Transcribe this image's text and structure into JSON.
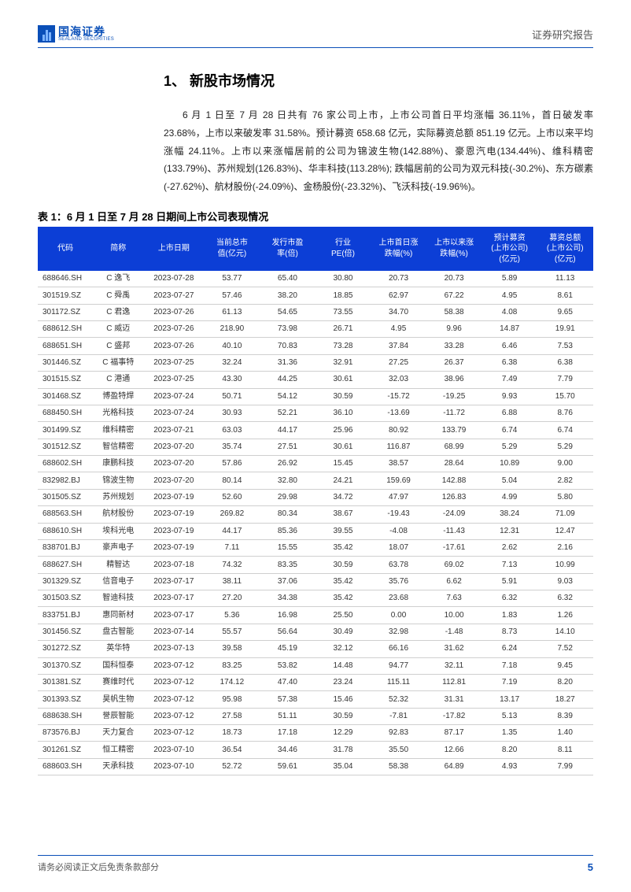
{
  "header": {
    "logo_cn": "国海证券",
    "logo_en": "SEALAND SECURITIES",
    "right_text": "证券研究报告"
  },
  "section": {
    "title": "1、 新股市场情况",
    "paragraph": "6 月 1 日至 7 月 28 日共有 76 家公司上市，上市公司首日平均涨幅 36.11%，首日破发率 23.68%，上市以来破发率 31.58%。预计募资 658.68 亿元，实际募资总额 851.19 亿元。上市以来平均涨幅 24.11%。上市以来涨幅居前的公司为锦波生物(142.88%)、豪恩汽电(134.44%)、维科精密(133.79%)、苏州规划(126.83%)、华丰科技(113.28%); 跌幅居前的公司为双元科技(-30.2%)、东方碳素(-27.62%)、航材股份(-24.09%)、金杨股份(-23.32%)、飞沃科技(-19.96%)。"
  },
  "table": {
    "title": "表 1：6 月 1 日至 7 月 28 日期间上市公司表现情况",
    "header_bg": "#0c3ed6",
    "columns": [
      "代码",
      "简称",
      "上市日期",
      "当前总市\n值(亿元)",
      "发行市盈\n率(倍)",
      "行业\nPE(倍)",
      "上市首日涨\n跌幅(%)",
      "上市以来涨\n跌幅(%)",
      "预计募资\n(上市公司)\n(亿元)",
      "募资总额\n(上市公司)\n(亿元)"
    ],
    "rows": [
      [
        "688646.SH",
        "C 逸飞",
        "2023-07-28",
        "53.77",
        "65.40",
        "30.80",
        "20.73",
        "20.73",
        "5.89",
        "11.13"
      ],
      [
        "301519.SZ",
        "C 舜禹",
        "2023-07-27",
        "57.46",
        "38.20",
        "18.85",
        "62.97",
        "67.22",
        "4.95",
        "8.61"
      ],
      [
        "301172.SZ",
        "C 君逸",
        "2023-07-26",
        "61.13",
        "54.65",
        "73.55",
        "34.70",
        "58.38",
        "4.08",
        "9.65"
      ],
      [
        "688612.SH",
        "C 威迈",
        "2023-07-26",
        "218.90",
        "73.98",
        "26.71",
        "4.95",
        "9.96",
        "14.87",
        "19.91"
      ],
      [
        "688651.SH",
        "C 盛邦",
        "2023-07-26",
        "40.10",
        "70.83",
        "73.28",
        "37.84",
        "33.28",
        "6.46",
        "7.53"
      ],
      [
        "301446.SZ",
        "C 福事特",
        "2023-07-25",
        "32.24",
        "31.36",
        "32.91",
        "27.25",
        "26.37",
        "6.38",
        "6.38"
      ],
      [
        "301515.SZ",
        "C 港通",
        "2023-07-25",
        "43.30",
        "44.25",
        "30.61",
        "32.03",
        "38.96",
        "7.49",
        "7.79"
      ],
      [
        "301468.SZ",
        "博盈特焊",
        "2023-07-24",
        "50.71",
        "54.12",
        "30.59",
        "-15.72",
        "-19.25",
        "9.93",
        "15.70"
      ],
      [
        "688450.SH",
        "光格科技",
        "2023-07-24",
        "30.93",
        "52.21",
        "36.10",
        "-13.69",
        "-11.72",
        "6.88",
        "8.76"
      ],
      [
        "301499.SZ",
        "维科精密",
        "2023-07-21",
        "63.03",
        "44.17",
        "25.96",
        "80.92",
        "133.79",
        "6.74",
        "6.74"
      ],
      [
        "301512.SZ",
        "智信精密",
        "2023-07-20",
        "35.74",
        "27.51",
        "30.61",
        "116.87",
        "68.99",
        "5.29",
        "5.29"
      ],
      [
        "688602.SH",
        "康鹏科技",
        "2023-07-20",
        "57.86",
        "26.92",
        "15.45",
        "38.57",
        "28.64",
        "10.89",
        "9.00"
      ],
      [
        "832982.BJ",
        "锦波生物",
        "2023-07-20",
        "80.14",
        "32.80",
        "24.21",
        "159.69",
        "142.88",
        "5.04",
        "2.82"
      ],
      [
        "301505.SZ",
        "苏州规划",
        "2023-07-19",
        "52.60",
        "29.98",
        "34.72",
        "47.97",
        "126.83",
        "4.99",
        "5.80"
      ],
      [
        "688563.SH",
        "航材股份",
        "2023-07-19",
        "269.82",
        "80.34",
        "38.67",
        "-19.43",
        "-24.09",
        "38.24",
        "71.09"
      ],
      [
        "688610.SH",
        "埃科光电",
        "2023-07-19",
        "44.17",
        "85.36",
        "39.55",
        "-4.08",
        "-11.43",
        "12.31",
        "12.47"
      ],
      [
        "838701.BJ",
        "豪声电子",
        "2023-07-19",
        "7.11",
        "15.55",
        "35.42",
        "18.07",
        "-17.61",
        "2.62",
        "2.16"
      ],
      [
        "688627.SH",
        "精智达",
        "2023-07-18",
        "74.32",
        "83.35",
        "30.59",
        "63.78",
        "69.02",
        "7.13",
        "10.99"
      ],
      [
        "301329.SZ",
        "信音电子",
        "2023-07-17",
        "38.11",
        "37.06",
        "35.42",
        "35.76",
        "6.62",
        "5.91",
        "9.03"
      ],
      [
        "301503.SZ",
        "智迪科技",
        "2023-07-17",
        "27.20",
        "34.38",
        "35.42",
        "23.68",
        "7.63",
        "6.32",
        "6.32"
      ],
      [
        "833751.BJ",
        "惠同新材",
        "2023-07-17",
        "5.36",
        "16.98",
        "25.50",
        "0.00",
        "10.00",
        "1.83",
        "1.26"
      ],
      [
        "301456.SZ",
        "盘古智能",
        "2023-07-14",
        "55.57",
        "56.64",
        "30.49",
        "32.98",
        "-1.48",
        "8.73",
        "14.10"
      ],
      [
        "301272.SZ",
        "英华特",
        "2023-07-13",
        "39.58",
        "45.19",
        "32.12",
        "66.16",
        "31.62",
        "6.24",
        "7.52"
      ],
      [
        "301370.SZ",
        "国科恒泰",
        "2023-07-12",
        "83.25",
        "53.82",
        "14.48",
        "94.77",
        "32.11",
        "7.18",
        "9.45"
      ],
      [
        "301381.SZ",
        "赛维时代",
        "2023-07-12",
        "174.12",
        "47.40",
        "23.24",
        "115.11",
        "112.81",
        "7.19",
        "8.20"
      ],
      [
        "301393.SZ",
        "昊帆生物",
        "2023-07-12",
        "95.98",
        "57.38",
        "15.46",
        "52.32",
        "31.31",
        "13.17",
        "18.27"
      ],
      [
        "688638.SH",
        "誉辰智能",
        "2023-07-12",
        "27.58",
        "51.11",
        "30.59",
        "-7.81",
        "-17.82",
        "5.13",
        "8.39"
      ],
      [
        "873576.BJ",
        "天力复合",
        "2023-07-12",
        "18.73",
        "17.18",
        "12.29",
        "92.83",
        "87.17",
        "1.35",
        "1.40"
      ],
      [
        "301261.SZ",
        "恒工精密",
        "2023-07-10",
        "36.54",
        "34.46",
        "31.78",
        "35.50",
        "12.66",
        "8.20",
        "8.11"
      ],
      [
        "688603.SH",
        "天承科技",
        "2023-07-10",
        "52.72",
        "59.61",
        "35.04",
        "58.38",
        "64.89",
        "4.93",
        "7.99"
      ]
    ]
  },
  "footer": {
    "left": "请务必阅读正文后免责条款部分",
    "page": "5"
  }
}
